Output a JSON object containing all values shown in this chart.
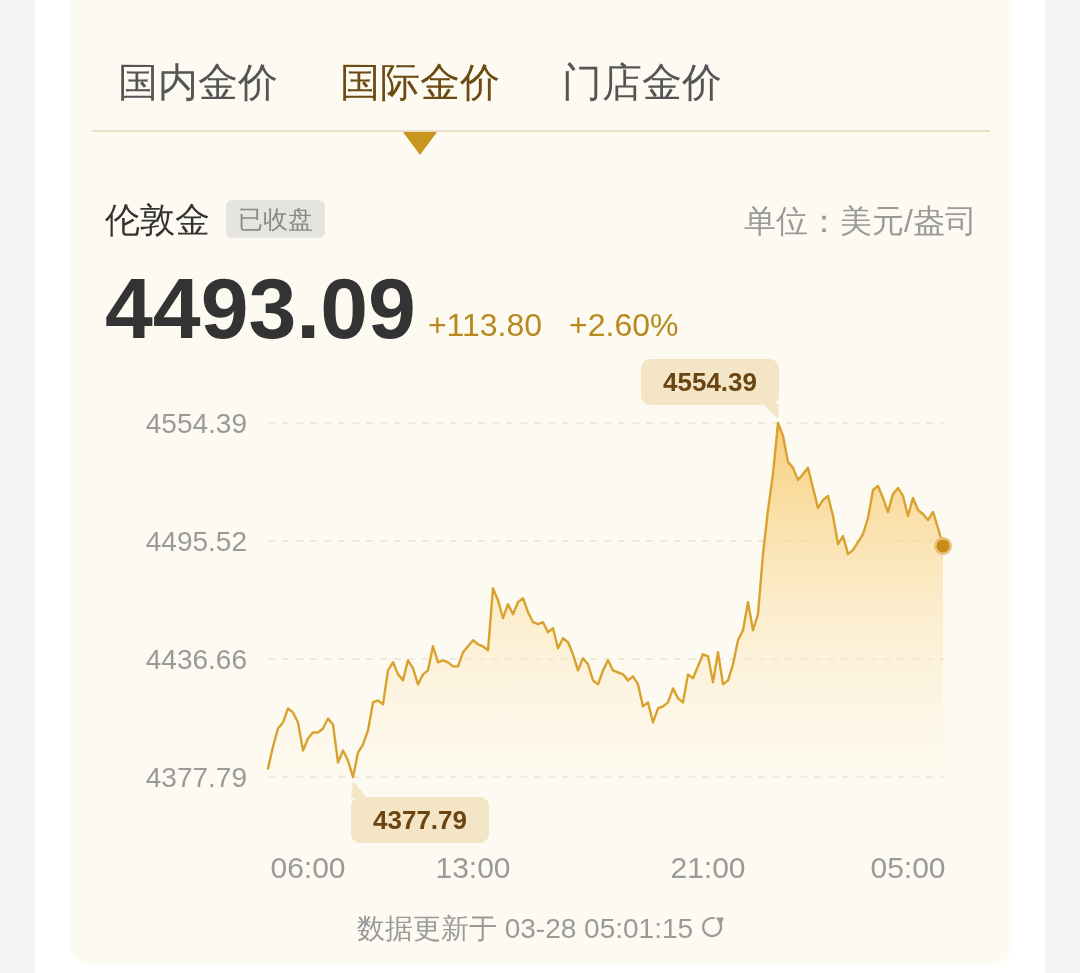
{
  "chart_data": {
    "type": "area",
    "title": "伦敦金",
    "categories": [
      null,
      null,
      null,
      null,
      null,
      null,
      null,
      null,
      "06:00",
      null,
      null,
      null,
      null,
      null,
      null,
      null,
      null,
      null,
      null,
      null,
      null,
      null,
      null,
      null,
      null,
      null,
      null,
      null,
      null,
      null,
      null,
      null,
      null,
      null,
      null,
      null,
      null,
      null,
      null,
      null,
      null,
      "13:00",
      null,
      null,
      null,
      null,
      null,
      null,
      null,
      null,
      null,
      null,
      null,
      null,
      null,
      null,
      null,
      null,
      null,
      null,
      null,
      null,
      null,
      null,
      null,
      null,
      null,
      null,
      null,
      null,
      null,
      null,
      null,
      null,
      null,
      null,
      null,
      null,
      null,
      null,
      null,
      null,
      null,
      null,
      null,
      null,
      null,
      null,
      "21:00",
      null,
      null,
      null,
      null,
      null,
      null,
      null,
      null,
      null,
      null,
      null,
      null,
      null,
      null,
      null,
      null,
      null,
      null,
      null,
      null,
      null,
      null,
      null,
      null,
      null,
      null,
      null,
      null,
      null,
      null,
      null,
      null,
      null,
      null,
      null,
      null,
      null,
      null,
      null,
      "05:00",
      null,
      null,
      null,
      null,
      null,
      null,
      null
    ],
    "values": [
      4382,
      4393,
      4402,
      4405,
      4412,
      4410,
      4405,
      4391,
      4397,
      4400,
      4400,
      4402,
      4407,
      4404,
      4385,
      4391,
      4386,
      4377.79,
      4390,
      4394,
      4401,
      4415,
      4416,
      4414,
      4431,
      4435,
      4429,
      4426,
      4436,
      4432,
      4424,
      4429,
      4431,
      4443,
      4435,
      4436,
      4435,
      4433,
      4433,
      4440,
      4443,
      4446,
      4444,
      4443,
      4441,
      4472,
      4466,
      4457,
      4464,
      4459,
      4465,
      4467,
      4460,
      4455,
      4454,
      4455,
      4450,
      4452,
      4442,
      4447,
      4445,
      4439,
      4431,
      4437,
      4434,
      4426,
      4424,
      4431,
      4436,
      4431,
      4430,
      4429,
      4426,
      4428,
      4424,
      4413,
      4415,
      4405,
      4412,
      4413,
      4415,
      4422,
      4417,
      4415,
      4429,
      4427,
      4433,
      4439,
      4438,
      4425,
      4440,
      4424,
      4426,
      4434,
      4446,
      4451,
      4465,
      4451,
      4459,
      4489,
      4511,
      4529,
      4554.39,
      4548,
      4535,
      4532,
      4526,
      4529,
      4532,
      4522,
      4512,
      4516,
      4518,
      4508,
      4494,
      4498,
      4489,
      4491,
      4495,
      4499,
      4507,
      4521,
      4523,
      4517,
      4510,
      4519,
      4522,
      4518,
      4508,
      4517,
      4511,
      4509,
      4506,
      4510,
      4502,
      4493.09
    ],
    "color": "#d9a22e",
    "ylim": [
      4377.79,
      4554.39
    ],
    "yticks": [
      4377.79,
      4436.66,
      4495.52,
      4554.39
    ],
    "grid": "y",
    "annotations": [
      "国内金价",
      "国际金价",
      "门店金价",
      "已收盘",
      "单位：美元/盎司",
      "4493.09",
      "+113.80",
      "+2.60%",
      "4554.39",
      "4377.79",
      "数据更新于 03-28 05:01:15"
    ]
  }
}
